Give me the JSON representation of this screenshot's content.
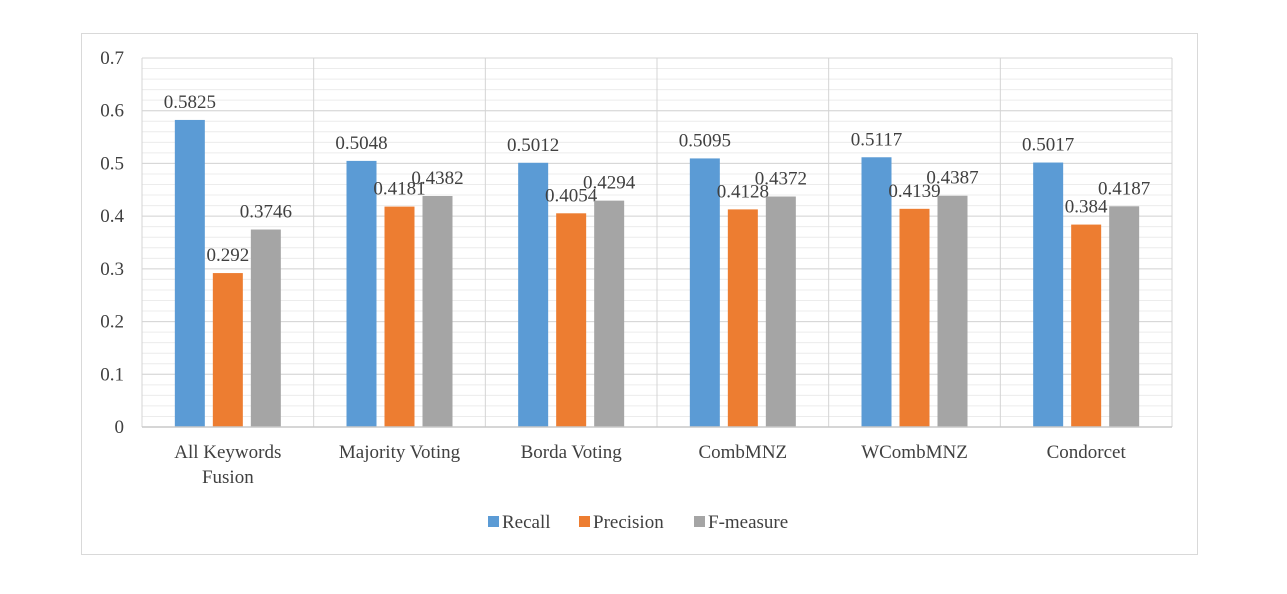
{
  "chart_data": {
    "type": "bar",
    "categories": [
      [
        "All Keywords",
        "Fusion"
      ],
      [
        "Majority Voting"
      ],
      [
        "Borda Voting"
      ],
      [
        "CombMNZ"
      ],
      [
        "WCombMNZ"
      ],
      [
        "Condorcet"
      ]
    ],
    "series": [
      {
        "name": "Recall",
        "color": "#5b9bd5",
        "values": [
          0.5825,
          0.5048,
          0.5012,
          0.5095,
          0.5117,
          0.5017
        ],
        "labels": [
          "0.5825",
          "0.5048",
          "0.5012",
          "0.5095",
          "0.5117",
          "0.5017"
        ]
      },
      {
        "name": "Precision",
        "color": "#ed7d31",
        "values": [
          0.292,
          0.4181,
          0.4054,
          0.4128,
          0.4139,
          0.384
        ],
        "labels": [
          "0.292",
          "0.4181",
          "0.4054",
          "0.4128",
          "0.4139",
          "0.384"
        ]
      },
      {
        "name": "F-measure",
        "color": "#a5a5a5",
        "values": [
          0.3746,
          0.4382,
          0.4294,
          0.4372,
          0.4387,
          0.4187
        ],
        "labels": [
          "0.3746",
          "0.4382",
          "0.4294",
          "0.4372",
          "0.4387",
          "0.4187"
        ]
      }
    ],
    "yticks": [
      "0",
      "0.1",
      "0.2",
      "0.3",
      "0.4",
      "0.5",
      "0.6",
      "0.7"
    ],
    "ylim": [
      0,
      0.7
    ],
    "grid": true,
    "legend": "bottom"
  }
}
